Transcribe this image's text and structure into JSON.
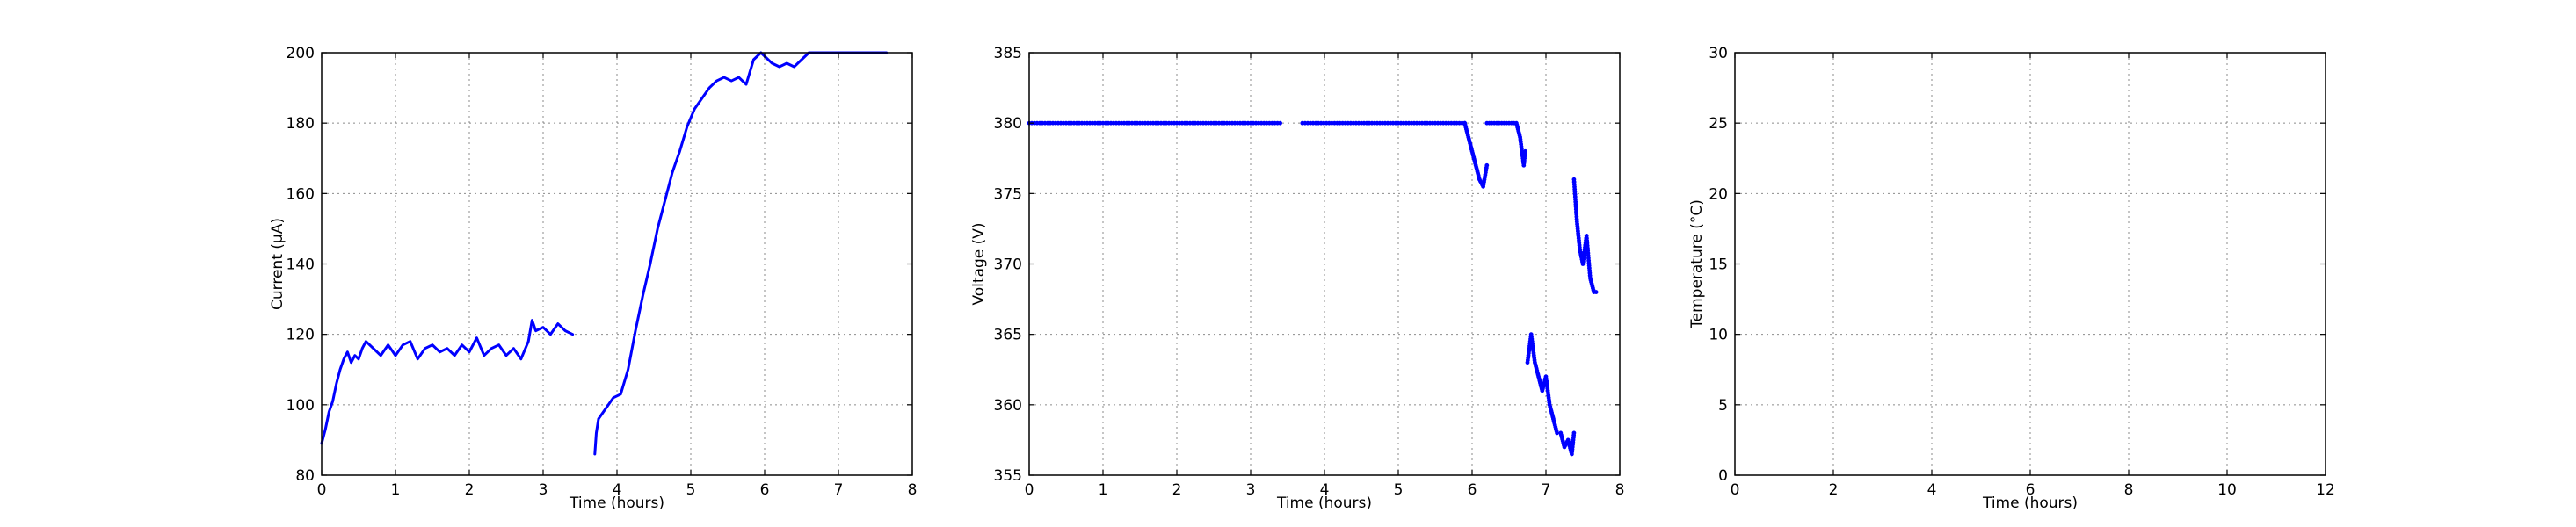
{
  "colors": {
    "series": "#0000ff",
    "frame": "#000000",
    "background": "#ffffff"
  },
  "chart_data": [
    {
      "type": "line",
      "xlabel": "Time (hours)",
      "ylabel": "Current (µA)",
      "xlim": [
        0,
        8
      ],
      "ylim": [
        80,
        200
      ],
      "xticks": [
        "0",
        "1",
        "2",
        "3",
        "4",
        "5",
        "6",
        "7",
        "8"
      ],
      "yticks": [
        "80",
        "100",
        "120",
        "140",
        "160",
        "180",
        "200"
      ],
      "grid": true,
      "series": [
        {
          "segments": [
            [
              [
                0.0,
                89
              ],
              [
                0.05,
                93
              ],
              [
                0.1,
                98
              ],
              [
                0.15,
                101
              ],
              [
                0.2,
                106
              ],
              [
                0.25,
                110
              ],
              [
                0.3,
                113
              ],
              [
                0.35,
                115
              ],
              [
                0.4,
                112
              ],
              [
                0.45,
                114
              ],
              [
                0.5,
                113
              ],
              [
                0.55,
                116
              ],
              [
                0.6,
                118
              ],
              [
                0.7,
                116
              ],
              [
                0.8,
                114
              ],
              [
                0.9,
                117
              ],
              [
                1.0,
                114
              ],
              [
                1.1,
                117
              ],
              [
                1.2,
                118
              ],
              [
                1.3,
                113
              ],
              [
                1.4,
                116
              ],
              [
                1.5,
                117
              ],
              [
                1.6,
                115
              ],
              [
                1.7,
                116
              ],
              [
                1.8,
                114
              ],
              [
                1.9,
                117
              ],
              [
                2.0,
                115
              ],
              [
                2.1,
                119
              ],
              [
                2.2,
                114
              ],
              [
                2.3,
                116
              ],
              [
                2.4,
                117
              ],
              [
                2.5,
                114
              ],
              [
                2.6,
                116
              ],
              [
                2.7,
                113
              ],
              [
                2.8,
                118
              ],
              [
                2.85,
                124
              ],
              [
                2.9,
                121
              ],
              [
                3.0,
                122
              ],
              [
                3.1,
                120
              ],
              [
                3.2,
                123
              ],
              [
                3.3,
                121
              ],
              [
                3.4,
                120
              ]
            ],
            [
              [
                3.7,
                86
              ],
              [
                3.72,
                92
              ],
              [
                3.75,
                96
              ],
              [
                3.85,
                99
              ],
              [
                3.95,
                102
              ],
              [
                4.05,
                103
              ],
              [
                4.15,
                110
              ],
              [
                4.25,
                121
              ],
              [
                4.35,
                131
              ],
              [
                4.45,
                140
              ],
              [
                4.55,
                150
              ],
              [
                4.65,
                158
              ],
              [
                4.75,
                166
              ],
              [
                4.85,
                172
              ],
              [
                4.95,
                179
              ],
              [
                5.05,
                184
              ],
              [
                5.15,
                187
              ],
              [
                5.25,
                190
              ],
              [
                5.35,
                192
              ],
              [
                5.45,
                193
              ],
              [
                5.55,
                192
              ],
              [
                5.65,
                193
              ],
              [
                5.75,
                191
              ],
              [
                5.85,
                198
              ],
              [
                5.95,
                200
              ],
              [
                6.1,
                197
              ],
              [
                6.2,
                196
              ],
              [
                6.3,
                197
              ],
              [
                6.4,
                196
              ],
              [
                6.5,
                198
              ],
              [
                6.6,
                200
              ],
              [
                7.0,
                200
              ],
              [
                7.5,
                200
              ],
              [
                7.65,
                200
              ]
            ]
          ]
        }
      ]
    },
    {
      "type": "scatter",
      "xlabel": "Time (hours)",
      "ylabel": "Voltage (V)",
      "xlim": [
        0,
        8
      ],
      "ylim": [
        355,
        385
      ],
      "xticks": [
        "0",
        "1",
        "2",
        "3",
        "4",
        "5",
        "6",
        "7",
        "8"
      ],
      "yticks": [
        "355",
        "360",
        "365",
        "370",
        "375",
        "380",
        "385"
      ],
      "grid": true,
      "series": [
        {
          "segments": [
            [
              [
                0.0,
                380
              ],
              [
                1.0,
                380
              ],
              [
                2.0,
                380
              ],
              [
                3.0,
                380
              ],
              [
                3.4,
                380
              ]
            ],
            [
              [
                3.7,
                380
              ],
              [
                4.5,
                380
              ],
              [
                5.0,
                380
              ],
              [
                5.5,
                380
              ],
              [
                5.9,
                380
              ]
            ],
            [
              [
                5.9,
                380
              ],
              [
                5.95,
                379
              ],
              [
                6.0,
                378
              ],
              [
                6.05,
                377
              ],
              [
                6.1,
                376
              ],
              [
                6.15,
                375.5
              ],
              [
                6.2,
                377
              ]
            ],
            [
              [
                6.2,
                380
              ],
              [
                6.4,
                380
              ],
              [
                6.6,
                380
              ],
              [
                6.65,
                379
              ],
              [
                6.7,
                377
              ],
              [
                6.72,
                378
              ]
            ],
            [
              [
                6.75,
                363
              ],
              [
                6.8,
                365
              ],
              [
                6.85,
                363
              ],
              [
                6.9,
                362
              ],
              [
                6.95,
                361
              ],
              [
                7.0,
                362
              ],
              [
                7.05,
                360
              ],
              [
                7.1,
                359
              ],
              [
                7.15,
                358
              ],
              [
                7.2,
                358
              ],
              [
                7.25,
                357
              ],
              [
                7.3,
                357.5
              ],
              [
                7.35,
                356.5
              ],
              [
                7.38,
                358
              ]
            ],
            [
              [
                7.38,
                376
              ],
              [
                7.42,
                373
              ],
              [
                7.46,
                371
              ],
              [
                7.5,
                370
              ],
              [
                7.55,
                372
              ],
              [
                7.6,
                369
              ],
              [
                7.65,
                368
              ],
              [
                7.68,
                368
              ]
            ]
          ]
        }
      ]
    },
    {
      "type": "line",
      "xlabel": "Time (hours)",
      "ylabel": "Temperature (°C)",
      "xlim": [
        0,
        12
      ],
      "ylim": [
        0,
        30
      ],
      "xticks": [
        "0",
        "2",
        "4",
        "6",
        "8",
        "10",
        "12"
      ],
      "yticks": [
        "0",
        "5",
        "10",
        "15",
        "20",
        "25",
        "30"
      ],
      "grid": true,
      "series": []
    }
  ]
}
